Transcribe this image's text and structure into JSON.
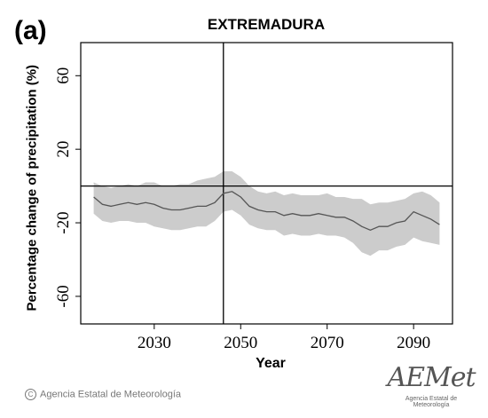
{
  "panel_label": "(a)",
  "footer": {
    "copyright": "Agencia Estatal de Meteorología"
  },
  "logo": {
    "word": "AEMet",
    "subtitle": "Agencia Estatal de Meteorología"
  },
  "chart_data": {
    "type": "line",
    "title": "EXTREMADURA",
    "xlabel": "Year",
    "ylabel": "Percentage change of precipitation (%)",
    "xlim": [
      2013,
      2099
    ],
    "ylim": [
      -75,
      78
    ],
    "xticks": [
      2030,
      2050,
      2070,
      2090
    ],
    "yticks": [
      60,
      20,
      -20,
      -60
    ],
    "ytick_labels": [
      "60",
      "20",
      "-20",
      "-60"
    ],
    "reference_lines": {
      "horizontal_y": 0,
      "vertical_x": 2046
    },
    "grid": false,
    "legend": "none",
    "colors": {
      "line": "#555555",
      "band": "#cccccc",
      "axis": "#000000"
    },
    "x": [
      2016,
      2018,
      2020,
      2022,
      2024,
      2026,
      2028,
      2030,
      2032,
      2034,
      2036,
      2038,
      2040,
      2042,
      2044,
      2046,
      2048,
      2050,
      2052,
      2054,
      2056,
      2058,
      2060,
      2062,
      2064,
      2066,
      2068,
      2070,
      2072,
      2074,
      2076,
      2078,
      2080,
      2082,
      2084,
      2086,
      2088,
      2090,
      2092,
      2094,
      2096
    ],
    "mean": [
      -6,
      -10,
      -11,
      -10,
      -9,
      -10,
      -9,
      -10,
      -12,
      -13,
      -13,
      -12,
      -11,
      -11,
      -9,
      -4,
      -3,
      -6,
      -11,
      -13,
      -14,
      -14,
      -16,
      -15,
      -16,
      -16,
      -15,
      -16,
      -17,
      -17,
      -19,
      -22,
      -24,
      -22,
      -22,
      -20,
      -19,
      -14,
      -16,
      -18,
      -21
    ],
    "upper": [
      2,
      0,
      -1,
      0,
      1,
      0,
      2,
      2,
      0,
      0,
      1,
      1,
      3,
      4,
      5,
      8,
      8,
      5,
      0,
      -3,
      -4,
      -3,
      -5,
      -4,
      -5,
      -5,
      -5,
      -4,
      -6,
      -6,
      -7,
      -7,
      -10,
      -9,
      -9,
      -8,
      -7,
      -4,
      -3,
      -5,
      -9
    ],
    "lower": [
      -15,
      -19,
      -20,
      -19,
      -19,
      -20,
      -20,
      -22,
      -23,
      -24,
      -24,
      -23,
      -22,
      -22,
      -19,
      -14,
      -13,
      -16,
      -21,
      -23,
      -24,
      -24,
      -27,
      -26,
      -27,
      -27,
      -26,
      -27,
      -27,
      -28,
      -31,
      -36,
      -38,
      -35,
      -35,
      -33,
      -32,
      -28,
      -30,
      -31,
      -32
    ]
  }
}
